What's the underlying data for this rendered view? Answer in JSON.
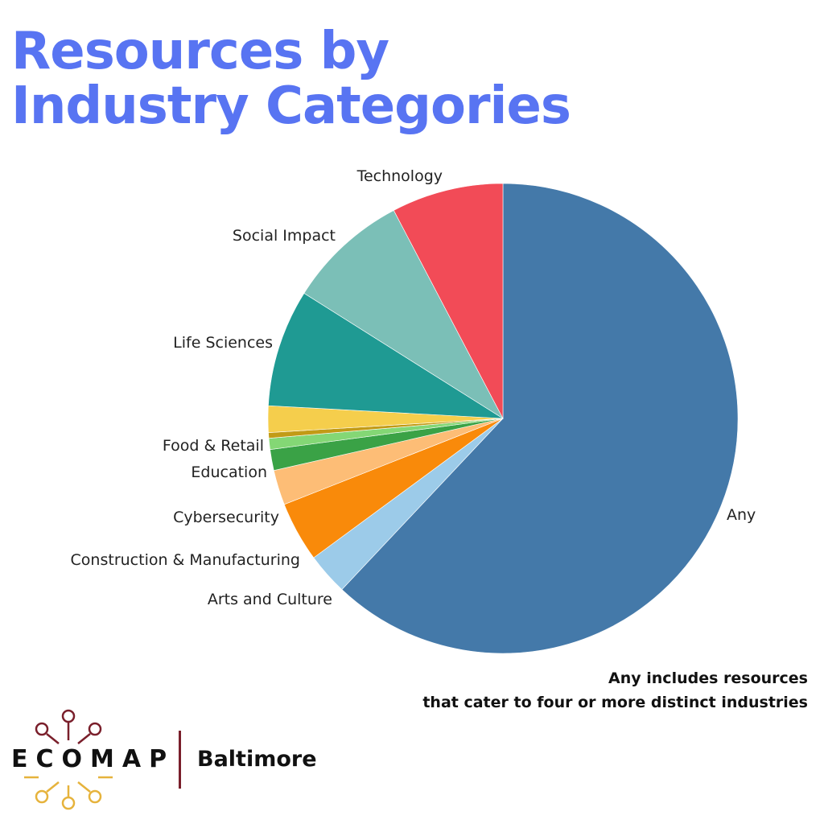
{
  "chart_data": {
    "type": "pie",
    "title": [
      "Resources by",
      "Industry Categories"
    ],
    "slices": [
      {
        "label": "Any",
        "value": 64.5,
        "color": "#4479a9"
      },
      {
        "label": "Arts and Culture",
        "value": 3.0,
        "color": "#9ccbe9"
      },
      {
        "label": "Construction & Manufacturing",
        "value": 4.3,
        "color": "#f98a0a"
      },
      {
        "label": "Cybersecurity",
        "value": 2.5,
        "color": "#fdbd76"
      },
      {
        "label": "Education",
        "value": 1.5,
        "color": "#3aa246"
      },
      {
        "label": "",
        "value": 0.8,
        "color": "#84d775"
      },
      {
        "label": "",
        "value": 0.4,
        "color": "#c29b16"
      },
      {
        "label": "Food & Retail",
        "value": 1.9,
        "color": "#f5ce4c"
      },
      {
        "label": "Life Sciences",
        "value": 8.4,
        "color": "#1f9a93"
      },
      {
        "label": "Social Impact",
        "value": 8.7,
        "color": "#7bbfb7"
      },
      {
        "label": "Technology",
        "value": 8.0,
        "color": "#f24b57"
      }
    ],
    "start": "top",
    "direction": "clockwise",
    "legend": "none"
  },
  "note": [
    "Any includes resources",
    "that cater to four or more distinct industries"
  ],
  "logo": {
    "wordmark": "ECOMAP",
    "city": "Baltimore",
    "colors": {
      "red": "#7a1f2b",
      "gold": "#e6b33c"
    }
  }
}
